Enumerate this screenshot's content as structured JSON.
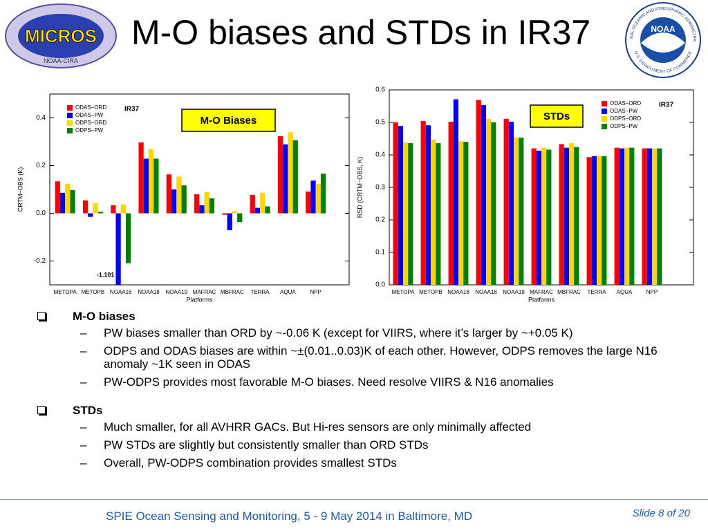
{
  "title": "M-O biases and STDs in IR37",
  "logos": {
    "left": {
      "name": "MICROS",
      "sub": "NOAA-CIRA"
    },
    "right": {
      "name": "NOAA",
      "ring_top": "NATIONAL OCEANIC AND ATMOSPHERIC ADMINISTRATION",
      "ring_bottom": "U.S. DEPARTMENT OF COMMERCE"
    }
  },
  "chart_data": [
    {
      "type": "bar",
      "title": "M-O Biases",
      "label": "IR37",
      "x_label": "Platforms",
      "y_label": "CRTM−OBS (K)",
      "categories": [
        "METOPA",
        "METOPB",
        "NOAA16",
        "NOAA18",
        "NOAA19",
        "MAFRAC",
        "MBFRAC",
        "TERRA",
        "AQUA",
        "NPP"
      ],
      "series": [
        {
          "name": "ODAS−ORD",
          "color": "#ff0000",
          "values": [
            0.134,
            0.054,
            0.034,
            0.297,
            0.163,
            0.08,
            -0.006,
            0.077,
            0.323,
            0.091
          ]
        },
        {
          "name": "ODAS−PW",
          "color": "#0000ff",
          "values": [
            0.086,
            -0.015,
            -1.101,
            0.229,
            0.1,
            0.034,
            -0.071,
            0.023,
            0.289,
            0.137
          ],
          "value_labels": [
            null,
            null,
            "-1.101",
            null,
            null,
            null,
            null,
            null,
            null,
            null
          ]
        },
        {
          "name": "ODPS−ORD",
          "color": "#ffd700",
          "values": [
            0.123,
            0.043,
            0.037,
            0.269,
            0.154,
            0.089,
            0.009,
            0.086,
            0.34,
            0.123
          ]
        },
        {
          "name": "ODPS−PW",
          "color": "#008000",
          "values": [
            0.097,
            0.006,
            -0.209,
            0.229,
            0.117,
            0.063,
            -0.037,
            0.029,
            0.306,
            0.166
          ]
        }
      ],
      "ylim": [
        -0.3,
        0.5
      ],
      "yticks": [
        -0.2,
        {
          "value": 0,
          "label": "0.0"
        },
        0.2,
        0.4
      ],
      "legend": "upper left"
    },
    {
      "type": "bar",
      "title": "STDs",
      "label": "IR37",
      "x_label": "Platforms",
      "y_label": "RSD (CRTM−OBS, K)",
      "categories": [
        "METOPA",
        "METOPB",
        "NOAA16",
        "NOAA18",
        "NOAA19",
        "MAFRAC",
        "MBFRAC",
        "TERRA",
        "AQUA",
        "NPP"
      ],
      "series": [
        {
          "name": "ODAS−ORD",
          "color": "#ff0000",
          "values": [
            0.5,
            0.504,
            0.502,
            0.569,
            0.511,
            0.42,
            0.433,
            0.393,
            0.422,
            0.42
          ]
        },
        {
          "name": "ODAS−PW",
          "color": "#0000ff",
          "values": [
            0.489,
            0.491,
            0.571,
            0.553,
            0.502,
            0.413,
            0.422,
            0.396,
            0.42,
            0.42
          ]
        },
        {
          "name": "ODPS−ORD",
          "color": "#ffd700",
          "values": [
            0.438,
            0.447,
            0.442,
            0.511,
            0.453,
            0.422,
            0.436,
            0.396,
            0.422,
            0.42
          ]
        },
        {
          "name": "ODPS−PW",
          "color": "#008000",
          "values": [
            0.436,
            0.436,
            0.44,
            0.5,
            0.453,
            0.416,
            0.424,
            0.396,
            0.422,
            0.42
          ]
        }
      ],
      "ylim": [
        0,
        0.6
      ],
      "yticks": [
        {
          "value": 0,
          "label": "0.0"
        },
        0.1,
        0.2,
        0.3,
        0.4,
        0.5,
        0.6
      ],
      "legend": "upper right"
    }
  ],
  "bullets": [
    {
      "heading": "M-O biases",
      "items": [
        "PW biases smaller than ORD by ~-0.06 K  (except for VIIRS, where it’s larger by ~+0.05 K)",
        "ODPS and ODAS biases are within ~±(0.01..0.03)K of each other. However, ODPS removes the large N16 anomaly ~1K seen in ODAS",
        "PW-ODPS provides most favorable M-O biases. Need resolve VIIRS & N16 anomalies"
      ]
    },
    {
      "heading": "STDs",
      "items": [
        "Much smaller, for all AVHRR GACs. But Hi-res sensors are only minimally affected",
        "PW STDs are slightly but consistently smaller than ORD STDs",
        "Overall, PW-ODPS combination provides smallest STDs"
      ]
    }
  ],
  "footer": {
    "text": "SPIE Ocean Sensing and Monitoring, 5 - 9 May 2014 in Baltimore, MD",
    "slide": "Slide 8 of 20"
  }
}
